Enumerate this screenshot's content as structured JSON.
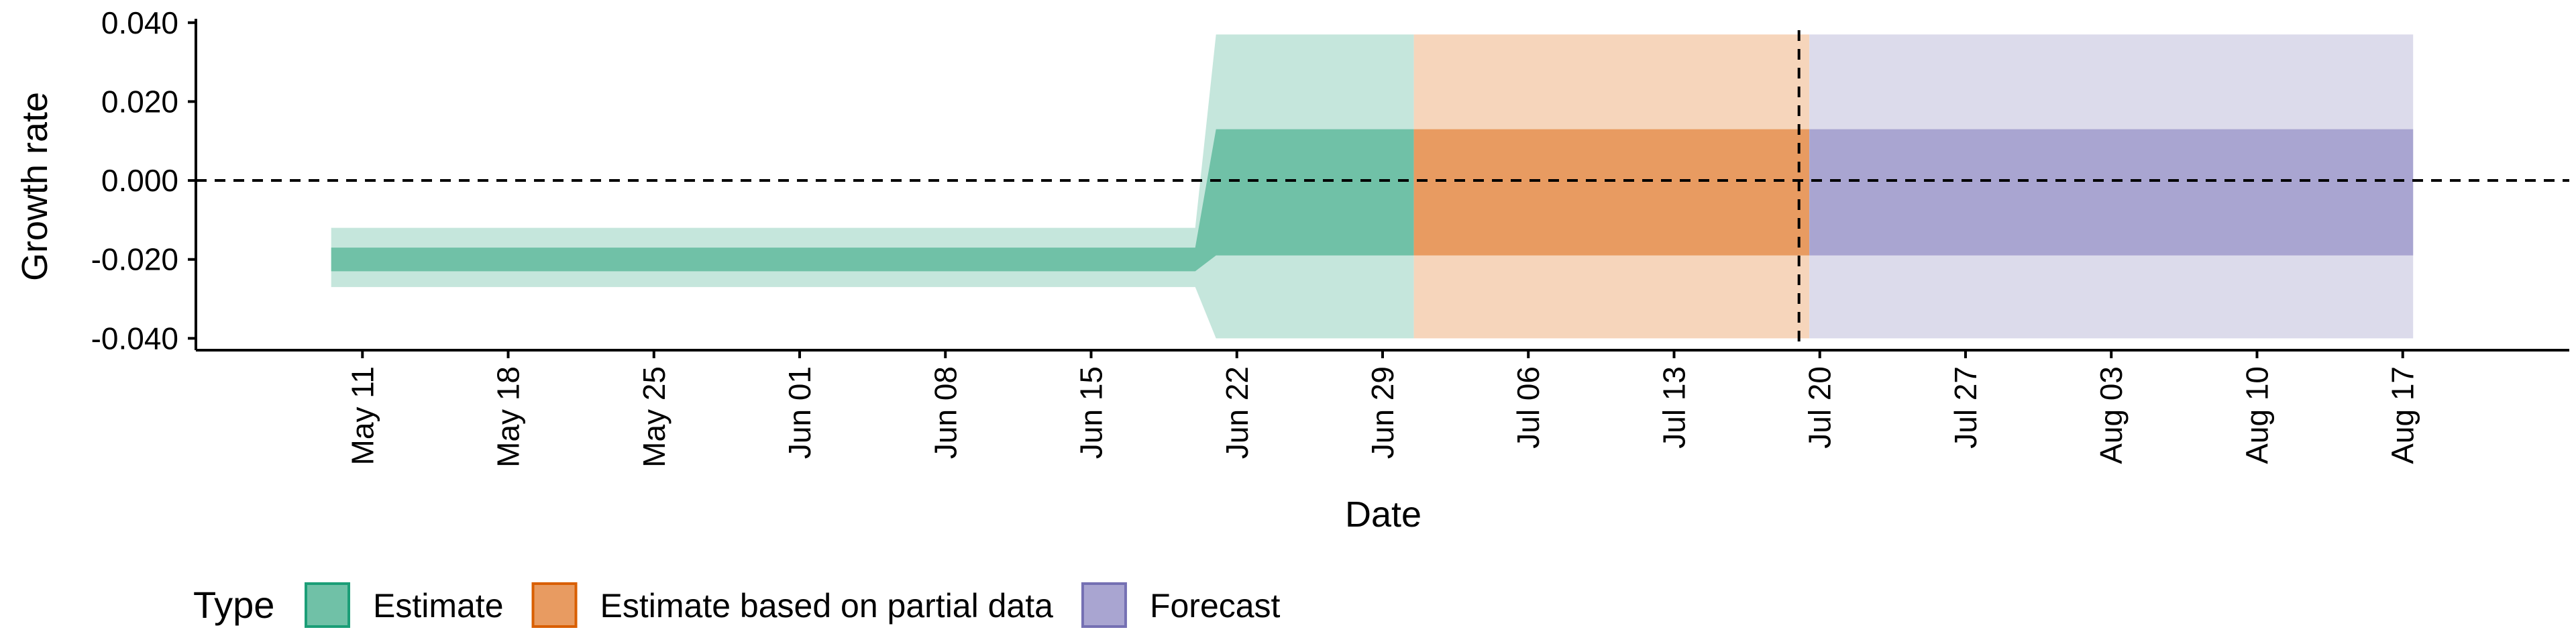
{
  "chart_data": {
    "type": "area",
    "xlabel": "Date",
    "ylabel": "Growth rate",
    "ylim": [
      -0.043,
      0.042
    ],
    "y_ticks": [
      {
        "value": 0.04,
        "label": "0.040"
      },
      {
        "value": 0.02,
        "label": "0.020"
      },
      {
        "value": 0.0,
        "label": "0.000"
      },
      {
        "value": -0.02,
        "label": "-0.020"
      },
      {
        "value": -0.04,
        "label": "-0.040"
      }
    ],
    "x_range": [
      "2020-05-03",
      "2020-08-25"
    ],
    "x_ticks": [
      {
        "date": "2020-05-11",
        "label": "May 11"
      },
      {
        "date": "2020-05-18",
        "label": "May 18"
      },
      {
        "date": "2020-05-25",
        "label": "May 25"
      },
      {
        "date": "2020-06-01",
        "label": "Jun 01"
      },
      {
        "date": "2020-06-08",
        "label": "Jun 08"
      },
      {
        "date": "2020-06-15",
        "label": "Jun 15"
      },
      {
        "date": "2020-06-22",
        "label": "Jun 22"
      },
      {
        "date": "2020-06-29",
        "label": "Jun 29"
      },
      {
        "date": "2020-07-06",
        "label": "Jul 06"
      },
      {
        "date": "2020-07-13",
        "label": "Jul 13"
      },
      {
        "date": "2020-07-20",
        "label": "Jul 20"
      },
      {
        "date": "2020-07-27",
        "label": "Jul 27"
      },
      {
        "date": "2020-08-03",
        "label": "Aug 03"
      },
      {
        "date": "2020-08-10",
        "label": "Aug 10"
      },
      {
        "date": "2020-08-17",
        "label": "Aug 17"
      }
    ],
    "reference_lines": {
      "horizontal_y": 0.0,
      "vertical_date": "2020-07-19",
      "style": "dashed"
    },
    "legend": {
      "title": "Type",
      "position": "bottom-left",
      "items": [
        "Estimate",
        "Estimate based on partial data",
        "Forecast"
      ]
    },
    "series": [
      {
        "name": "Estimate",
        "color_outer": "#c5e6dc",
        "color_inner": "#70c1a7",
        "legend_border": "#1b9e77",
        "points": [
          {
            "date": "2020-05-10",
            "lo90": -0.027,
            "lo50": -0.023,
            "hi50": -0.017,
            "hi90": -0.012
          },
          {
            "date": "2020-06-20",
            "lo90": -0.027,
            "lo50": -0.023,
            "hi50": -0.017,
            "hi90": -0.012
          },
          {
            "date": "2020-06-21",
            "lo90": -0.04,
            "lo50": -0.019,
            "hi50": 0.013,
            "hi90": 0.037
          },
          {
            "date": "2020-06-30",
            "lo90": -0.04,
            "lo50": -0.019,
            "hi50": 0.013,
            "hi90": 0.037
          }
        ]
      },
      {
        "name": "Estimate based on partial data",
        "color_outer": "#f6d5bb",
        "color_inner": "#e89b61",
        "legend_border": "#d95f02",
        "points": [
          {
            "date": "2020-07-01",
            "lo90": -0.04,
            "lo50": -0.019,
            "hi50": 0.013,
            "hi90": 0.037
          },
          {
            "date": "2020-07-19",
            "lo90": -0.04,
            "lo50": -0.019,
            "hi50": 0.013,
            "hi90": 0.037
          }
        ]
      },
      {
        "name": "Forecast",
        "color_outer": "#dcdbeb",
        "color_inner": "#a9a5d1",
        "legend_border": "#7570b3",
        "points": [
          {
            "date": "2020-07-20",
            "lo90": -0.04,
            "lo50": -0.019,
            "hi50": 0.013,
            "hi90": 0.037
          },
          {
            "date": "2020-08-17",
            "lo90": -0.04,
            "lo50": -0.019,
            "hi50": 0.013,
            "hi90": 0.037
          }
        ]
      }
    ]
  }
}
